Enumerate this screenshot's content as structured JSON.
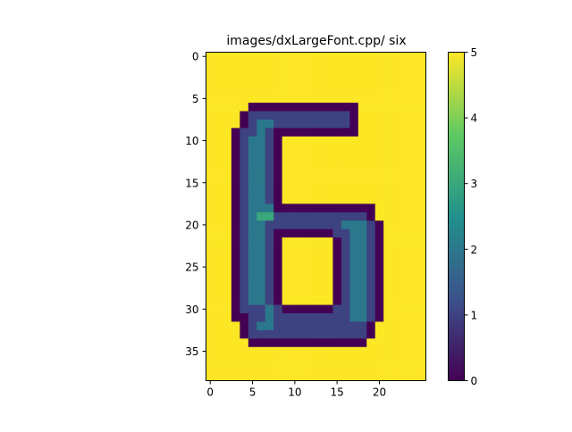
{
  "chart_data": {
    "type": "heatmap",
    "title": "images/dxLargeFont.cpp/ six",
    "xlabel": "",
    "ylabel": "",
    "x_ticks": [
      0,
      5,
      10,
      15,
      20
    ],
    "y_ticks": [
      0,
      5,
      10,
      15,
      20,
      25,
      30,
      35
    ],
    "x_range": [
      -0.5,
      25.5
    ],
    "y_range": [
      -0.5,
      38.5
    ],
    "colorbar": {
      "colormap": "viridis",
      "range": [
        0,
        5
      ],
      "ticks": [
        0,
        1,
        2,
        3,
        4,
        5
      ],
      "colors": [
        "#440154",
        "#3b528b",
        "#21918c",
        "#5ec962",
        "#fde725"
      ]
    },
    "grid": false,
    "rows": [
      "55555555555555555555555555",
      "55555555555555555555555555",
      "55555555555555555555555555",
      "55555555555555555555555555",
      "55555555555555555555555555",
      "55555555555555555555555555",
      "55555000000000000055555555",
      "55550111111111111055555555",
      "55550122111111111055555555",
      "55501121000000000055555555",
      "55501221055555555555555555",
      "55501221055555555555555555",
      "55501221055555555555555555",
      "55501221055555555555555555",
      "55501221055555555555555555",
      "55501221055555555555555555",
      "55501221055555555555555555",
      "55501221055555555555555555",
      "55501222000000000000555555",
      "55501233111111111110555555",
      "55501221111111112221055555",
      "55501221000000011221055555",
      "55501221055555501221055555",
      "55501221055555501221055555",
      "55501221055555501221055555",
      "55501221055555501221055555",
      "55501221055555501221055555",
      "55501221055555501221055555",
      "55501221055555501221055555",
      "55501221055555501221055555",
      "55501112100000011221055555",
      "55500112111111111221055555",
      "55550122111111111110555555",
      "55550111111111111110555555",
      "55555000000000000005555555",
      "55555555555555555555555555",
      "55555555555555555555555555",
      "55555555555555555555555555",
      "55555555555555555555555555"
    ]
  }
}
